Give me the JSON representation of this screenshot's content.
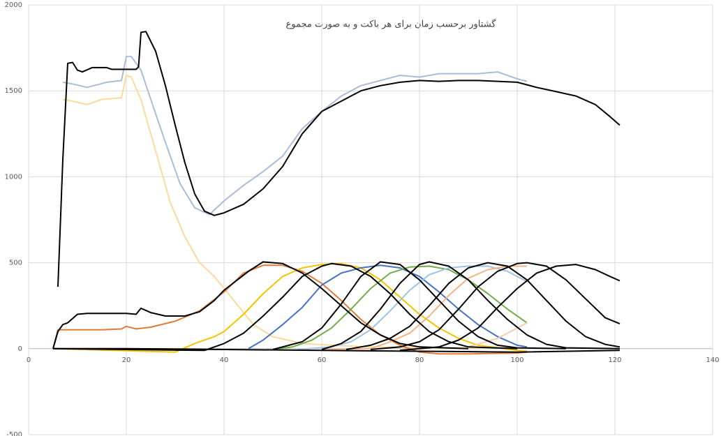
{
  "chart_data": {
    "type": "line",
    "title": "گشتاور برحسب زمان برای هر باکت و به صورت مجموع",
    "xlim": [
      0,
      140
    ],
    "xticks": [
      0,
      20,
      40,
      60,
      80,
      100,
      120,
      140
    ],
    "ylim": [
      -500,
      2000
    ],
    "yticks": [
      -500,
      0,
      500,
      1000,
      1500,
      2000
    ],
    "grid": true,
    "series": [
      {
        "color": "#a9bcdb",
        "x": [
          7,
          9,
          12,
          16,
          19,
          20,
          21,
          23,
          25,
          28,
          31,
          34,
          37,
          40,
          44,
          48,
          52,
          56,
          60,
          64,
          68,
          72,
          76,
          80,
          84,
          88,
          92,
          96,
          100,
          102
        ],
        "values": [
          1550,
          1540,
          1520,
          1550,
          1560,
          1700,
          1700,
          1620,
          1450,
          1200,
          960,
          820,
          780,
          860,
          950,
          1030,
          1120,
          1280,
          1380,
          1470,
          1530,
          1560,
          1590,
          1580,
          1600,
          1600,
          1600,
          1610,
          1570,
          1555
        ]
      },
      {
        "color": "#fdd99b",
        "x": [
          7,
          9,
          12,
          15,
          19,
          20,
          21,
          23,
          26,
          29,
          32,
          35,
          38,
          42,
          46,
          50,
          56,
          62,
          70,
          80,
          90,
          100
        ],
        "values": [
          1450,
          1440,
          1420,
          1450,
          1460,
          1590,
          1580,
          1450,
          1150,
          850,
          650,
          500,
          420,
          280,
          140,
          70,
          30,
          20,
          10,
          5,
          5,
          5
        ]
      },
      {
        "color": "#e07b39",
        "x": [
          5,
          6,
          15,
          19,
          20,
          22,
          25,
          30,
          35,
          40,
          44,
          48,
          52,
          56,
          60,
          64,
          68,
          72,
          76,
          80,
          84,
          90,
          100,
          102
        ],
        "values": [
          0,
          110,
          110,
          115,
          130,
          115,
          125,
          160,
          220,
          330,
          440,
          485,
          485,
          450,
          380,
          280,
          170,
          80,
          20,
          -20,
          -30,
          -30,
          -25,
          -20
        ]
      },
      {
        "color": "#f5c400",
        "x": [
          5,
          30,
          34,
          38,
          40,
          44,
          48,
          52,
          56,
          60,
          64,
          68,
          72,
          76,
          80,
          84,
          88,
          92,
          100,
          102
        ],
        "values": [
          0,
          -20,
          30,
          70,
          100,
          200,
          320,
          420,
          470,
          490,
          495,
          470,
          400,
          300,
          200,
          120,
          60,
          20,
          -10,
          -15
        ]
      },
      {
        "color": "#4472c4",
        "x": [
          45,
          48,
          52,
          56,
          60,
          64,
          68,
          72,
          76,
          80,
          84,
          88,
          92,
          96,
          100,
          102
        ],
        "values": [
          0,
          50,
          140,
          240,
          370,
          440,
          470,
          485,
          470,
          420,
          330,
          230,
          140,
          70,
          20,
          10
        ]
      },
      {
        "color": "#70ad47",
        "x": [
          50,
          54,
          58,
          62,
          66,
          70,
          74,
          78,
          82,
          86,
          90,
          94,
          98,
          102
        ],
        "values": [
          -5,
          10,
          50,
          120,
          230,
          350,
          440,
          475,
          480,
          460,
          400,
          320,
          230,
          150
        ]
      },
      {
        "color": "#9dc3e6",
        "x": [
          55,
          62,
          66,
          70,
          74,
          78,
          82,
          86,
          90,
          94,
          98,
          102
        ],
        "values": [
          -5,
          10,
          40,
          110,
          220,
          340,
          430,
          470,
          480,
          480,
          450,
          390
        ]
      },
      {
        "color": "#f4b183",
        "x": [
          60,
          70,
          74,
          78,
          82,
          86,
          90,
          94,
          98,
          102
        ],
        "values": [
          -5,
          0,
          40,
          90,
          190,
          310,
          410,
          460,
          480,
          480
        ]
      },
      {
        "color": "#f8cbad",
        "x": [
          90,
          96,
          100,
          102
        ],
        "values": [
          10,
          60,
          120,
          150
        ]
      },
      {
        "color": "#000000",
        "x": [
          5,
          6,
          7,
          8,
          10,
          12,
          20,
          22,
          23,
          25,
          28,
          32,
          35,
          38,
          40,
          45,
          48,
          52,
          56,
          60,
          64,
          68,
          72,
          76,
          80,
          90
        ],
        "values": [
          0,
          100,
          140,
          150,
          200,
          205,
          205,
          200,
          235,
          210,
          190,
          190,
          215,
          280,
          340,
          450,
          505,
          495,
          440,
          350,
          250,
          150,
          80,
          30,
          10,
          0
        ]
      },
      {
        "color": "#000000",
        "x": [
          5,
          36,
          40,
          44,
          48,
          52,
          56,
          60,
          62,
          66,
          70,
          74,
          78,
          82,
          86,
          90,
          100
        ],
        "values": [
          0,
          -10,
          30,
          90,
          190,
          300,
          420,
          480,
          495,
          480,
          420,
          320,
          200,
          100,
          40,
          10,
          0
        ]
      },
      {
        "color": "#000000",
        "x": [
          50,
          56,
          60,
          64,
          68,
          72,
          76,
          80,
          84,
          88,
          92,
          96,
          100,
          110
        ],
        "values": [
          -5,
          40,
          120,
          260,
          420,
          505,
          490,
          400,
          280,
          160,
          70,
          20,
          5,
          0
        ]
      },
      {
        "color": "#000000",
        "x": [
          60,
          64,
          68,
          72,
          76,
          80,
          82,
          86,
          90,
          94,
          98,
          102,
          106,
          110,
          121
        ],
        "values": [
          -5,
          30,
          100,
          230,
          380,
          490,
          505,
          480,
          400,
          280,
          170,
          80,
          25,
          5,
          0
        ]
      },
      {
        "color": "#000000",
        "x": [
          65,
          70,
          74,
          78,
          82,
          86,
          90,
          94,
          98,
          102,
          106,
          110,
          114,
          118,
          121
        ],
        "values": [
          -5,
          20,
          60,
          130,
          250,
          380,
          470,
          500,
          480,
          400,
          280,
          160,
          70,
          25,
          10
        ]
      },
      {
        "color": "#000000",
        "x": [
          70,
          76,
          80,
          84,
          88,
          92,
          96,
          100,
          102,
          106,
          110,
          114,
          118,
          121
        ],
        "values": [
          -5,
          10,
          40,
          110,
          230,
          360,
          450,
          495,
          500,
          480,
          400,
          290,
          180,
          145
        ]
      },
      {
        "color": "#000000",
        "x": [
          76,
          84,
          88,
          92,
          96,
          100,
          104,
          108,
          112,
          116,
          119,
          121
        ],
        "values": [
          -10,
          10,
          50,
          120,
          240,
          350,
          440,
          480,
          490,
          460,
          420,
          395
        ]
      },
      {
        "color": "#000000",
        "x": [
          5,
          20,
          40,
          60,
          80,
          100,
          121
        ],
        "values": [
          0,
          0,
          -5,
          -10,
          -15,
          -20,
          -10
        ]
      },
      {
        "color": "#000000",
        "x": [
          6,
          7,
          8,
          9,
          10,
          11,
          13,
          16,
          17,
          22,
          22.5,
          23,
          24,
          26,
          28,
          30,
          32,
          34,
          36,
          38,
          40,
          44,
          48,
          52,
          56,
          60,
          64,
          68,
          72,
          76,
          80,
          84,
          88,
          92,
          96,
          100,
          104,
          108,
          112,
          116,
          119,
          121
        ],
        "values": [
          360,
          1100,
          1660,
          1665,
          1620,
          1610,
          1635,
          1635,
          1625,
          1625,
          1640,
          1840,
          1845,
          1730,
          1530,
          1300,
          1080,
          900,
          800,
          775,
          790,
          840,
          930,
          1060,
          1250,
          1380,
          1440,
          1500,
          1530,
          1550,
          1560,
          1555,
          1560,
          1560,
          1555,
          1550,
          1520,
          1495,
          1470,
          1420,
          1350,
          1300
        ]
      }
    ]
  }
}
